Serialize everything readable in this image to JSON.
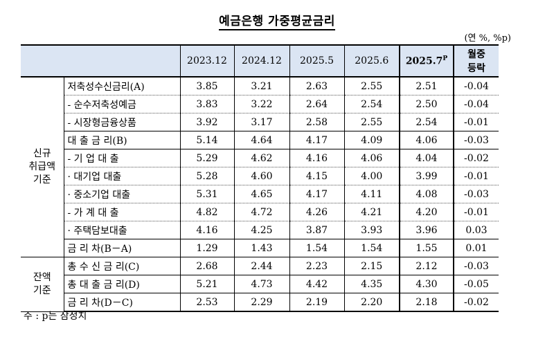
{
  "title": "예금은행 가중평균금리",
  "unit": "(연 %, %p)",
  "columns": [
    "2023.12",
    "2024.12",
    "2025.5",
    "2025.6",
    "2025.7",
    "월중 등락"
  ],
  "highlight_sup": "P",
  "change_header": [
    "월중",
    "등락"
  ],
  "categories": {
    "new": [
      "신규",
      "취급액",
      "기준"
    ],
    "balance": [
      "잔액",
      "기준"
    ]
  },
  "rows": [
    {
      "label": "저축성수신금리(A)",
      "values": [
        "3.85",
        "3.21",
        "2.63",
        "2.55",
        "2.51",
        "-0.04"
      ]
    },
    {
      "label": "- 순수저축성예금",
      "values": [
        "3.83",
        "3.22",
        "2.64",
        "2.54",
        "2.50",
        "-0.04"
      ]
    },
    {
      "label": "- 시장형금융상품",
      "values": [
        "3.92",
        "3.17",
        "2.58",
        "2.55",
        "2.54",
        "-0.01"
      ]
    },
    {
      "label": "대 출 금 리(B)",
      "values": [
        "5.14",
        "4.64",
        "4.17",
        "4.09",
        "4.06",
        "-0.03"
      ]
    },
    {
      "label": "- 기 업 대 출",
      "values": [
        "5.29",
        "4.62",
        "4.16",
        "4.06",
        "4.04",
        "-0.02"
      ]
    },
    {
      "label": "· 대기업 대출",
      "values": [
        "5.28",
        "4.60",
        "4.15",
        "4.00",
        "3.99",
        "-0.01"
      ]
    },
    {
      "label": "· 중소기업 대출",
      "values": [
        "5.31",
        "4.65",
        "4.17",
        "4.11",
        "4.08",
        "-0.03"
      ]
    },
    {
      "label": "- 가 계 대 출",
      "values": [
        "4.82",
        "4.72",
        "4.26",
        "4.21",
        "4.20",
        "-0.01"
      ]
    },
    {
      "label": "· 주택담보대출",
      "values": [
        "4.16",
        "4.25",
        "3.87",
        "3.93",
        "3.96",
        "0.03"
      ]
    },
    {
      "label": "금 리 차(B－A)",
      "values": [
        "1.29",
        "1.43",
        "1.54",
        "1.54",
        "1.55",
        "0.01"
      ]
    },
    {
      "label": "총 수 신 금 리(C)",
      "values": [
        "2.68",
        "2.44",
        "2.23",
        "2.15",
        "2.12",
        "-0.03"
      ]
    },
    {
      "label": "총 대 출 금 리(D)",
      "values": [
        "5.21",
        "4.73",
        "4.42",
        "4.35",
        "4.30",
        "-0.05"
      ]
    },
    {
      "label": "금 리 차(D－C)",
      "values": [
        "2.53",
        "2.29",
        "2.19",
        "2.20",
        "2.18",
        "-0.02"
      ]
    }
  ],
  "note": "주 : p는 잠정치"
}
